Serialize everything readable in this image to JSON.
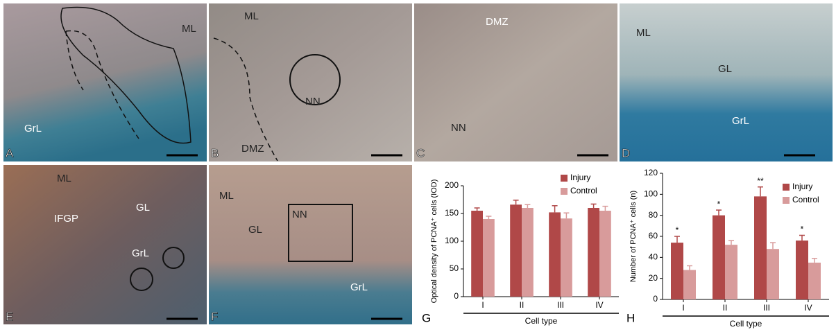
{
  "panels": {
    "A": {
      "letter": "A",
      "labels": [
        "ML",
        "GrL"
      ]
    },
    "B": {
      "letter": "B",
      "labels": [
        "ML",
        "NN",
        "DMZ"
      ]
    },
    "C": {
      "letter": "C",
      "labels": [
        "DMZ",
        "NN"
      ]
    },
    "D": {
      "letter": "D",
      "labels": [
        "ML",
        "GL",
        "GrL"
      ]
    },
    "E": {
      "letter": "E",
      "labels": [
        "ML",
        "IFGP",
        "GL",
        "GrL"
      ]
    },
    "F": {
      "letter": "F",
      "labels": [
        "ML",
        "GL",
        "NN",
        "GrL"
      ]
    }
  },
  "chart_data": [
    {
      "type": "bar",
      "letter": "G",
      "ylabel": "Optical density of PCNA⁺ cells (IOD)",
      "xlabel": "Cell type",
      "categories": [
        "I",
        "II",
        "III",
        "IV"
      ],
      "series": [
        {
          "name": "Injury",
          "color": "#b04848",
          "values": [
            155,
            166,
            152,
            160
          ],
          "errors": [
            5,
            8,
            12,
            7
          ]
        },
        {
          "name": "Control",
          "color": "#d89b9b",
          "values": [
            140,
            160,
            141,
            155
          ],
          "errors": [
            5,
            6,
            10,
            8
          ]
        }
      ],
      "ylim": [
        0,
        200
      ],
      "yticks": [
        0,
        50,
        100,
        150,
        200
      ]
    },
    {
      "type": "bar",
      "letter": "H",
      "ylabel": "Number of PCNA⁺ cells (n)",
      "xlabel": "Cell type",
      "categories": [
        "I",
        "II",
        "III",
        "IV"
      ],
      "series": [
        {
          "name": "Injury",
          "color": "#b04848",
          "values": [
            54,
            80,
            98,
            56
          ],
          "errors": [
            6,
            5,
            9,
            5
          ]
        },
        {
          "name": "Control",
          "color": "#d89b9b",
          "values": [
            28,
            52,
            48,
            35
          ],
          "errors": [
            4,
            4,
            6,
            4
          ]
        }
      ],
      "significance": [
        "*",
        "*",
        "**",
        "*"
      ],
      "ylim": [
        0,
        120
      ],
      "yticks": [
        0,
        20,
        40,
        60,
        80,
        100,
        120
      ]
    }
  ]
}
